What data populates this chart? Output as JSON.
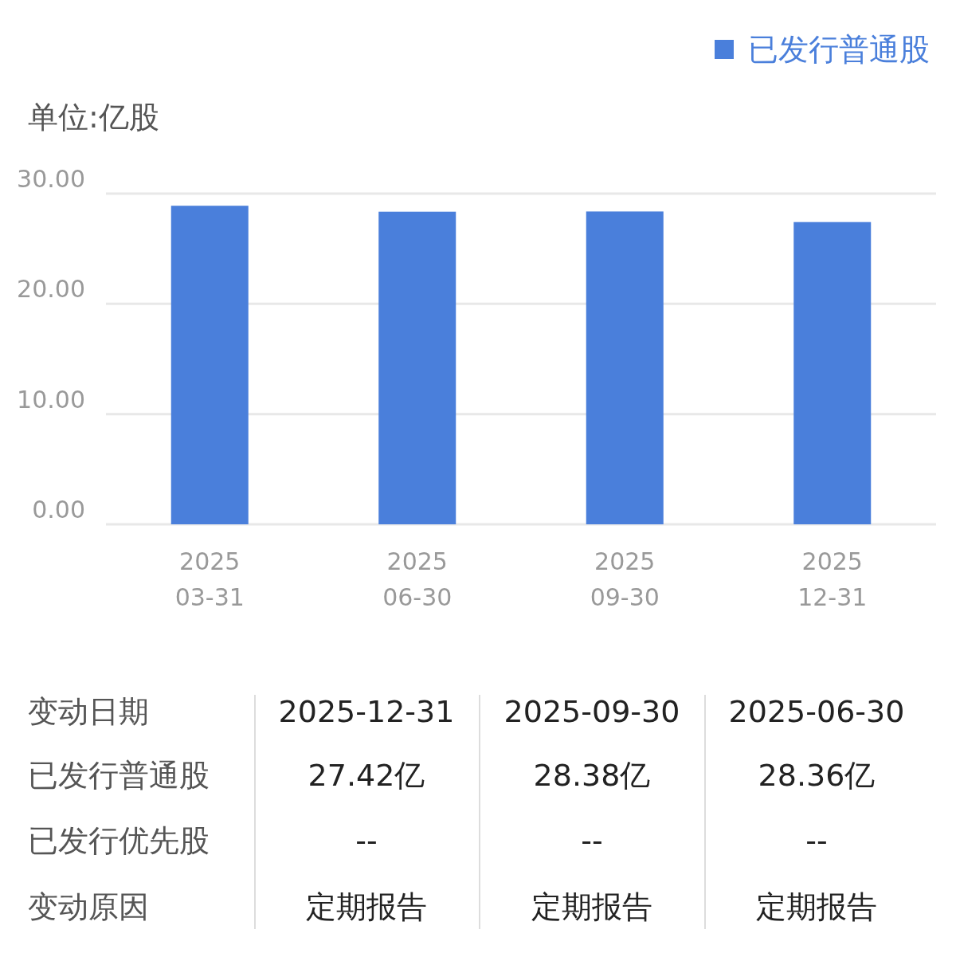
{
  "chart_data": [
    {
      "type": "bar",
      "ylabel": "单位:亿股",
      "categories": [
        "2025\n03-31",
        "2025\n06-30",
        "2025\n09-30",
        "2025\n12-31"
      ],
      "series": [
        {
          "name": "已发行普通股",
          "color": "#4a7fdb",
          "values": [
            28.9,
            28.36,
            28.38,
            27.42
          ]
        }
      ],
      "ylim": [
        0,
        30
      ],
      "yticks": [
        {
          "value": 0,
          "label": "0.00"
        },
        {
          "value": 10,
          "label": "10.00"
        },
        {
          "value": 20,
          "label": "20.00"
        },
        {
          "value": 30,
          "label": "30.00"
        }
      ],
      "grid": "y",
      "legend": "top right"
    },
    {
      "type": "other",
      "annotations": [
        "变动日期",
        "2025-12-31",
        "2025-09-30",
        "2025-06-30",
        "已发行普通股",
        "27.42亿",
        "28.38亿",
        "28.36亿",
        "已发行优先股",
        "--",
        "--",
        "--",
        "变动原因",
        "定期报告",
        "定期报告",
        "定期报告"
      ]
    }
  ]
}
